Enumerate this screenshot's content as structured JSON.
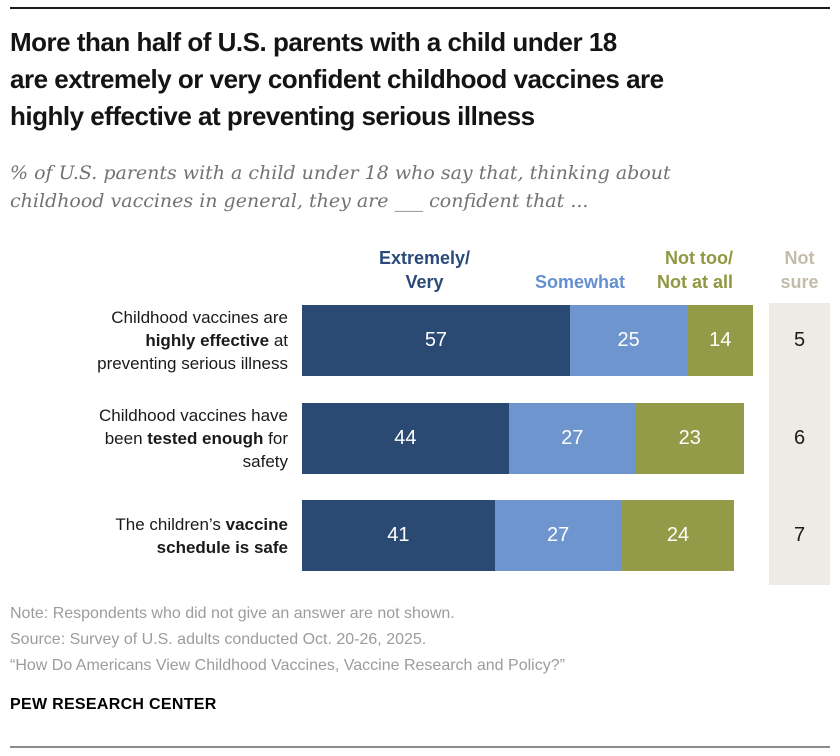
{
  "header": {
    "title_lines": [
      "More than half of U.S. parents with a child under 18",
      "are extremely or very confident childhood vaccines are",
      "highly effective at preventing serious illness"
    ],
    "subtitle_lines": [
      "% of U.S. parents with a child under 18 who say that, thinking about",
      "childhood vaccines in general, they are ___ confident that ..."
    ]
  },
  "colors": {
    "navy": "#2a4a74",
    "blue": "#6e95cd",
    "olive": "#949b48",
    "navy_text": "#2a4a78",
    "blue_text": "#6590d0",
    "olive_text": "#8f9740",
    "notsure_bg": "#edebe3",
    "notsure_text": "#c2bcaa",
    "bar_value_text": "#ffffff"
  },
  "chart_data": {
    "type": "bar",
    "variant": "horizontal-stacked",
    "unit": "%",
    "xlim": [
      0,
      100
    ],
    "legend": [
      {
        "id": "extremely_very",
        "lines": [
          "Extremely/",
          "Very"
        ]
      },
      {
        "id": "somewhat",
        "lines": [
          "Somewhat"
        ]
      },
      {
        "id": "not_too_not_at_all",
        "lines": [
          "Not too/",
          "Not at all"
        ]
      },
      {
        "id": "not_sure",
        "lines": [
          "Not",
          "sure"
        ]
      }
    ],
    "series_order": [
      "extremely_very",
      "somewhat",
      "not_too_not_at_all"
    ],
    "rows": [
      {
        "label_lines": [
          [
            {
              "text": "Childhood vaccines are",
              "bold": false
            }
          ],
          [
            {
              "text": "highly effective",
              "bold": true
            },
            {
              "text": " at",
              "bold": false
            }
          ],
          [
            {
              "text": "preventing serious illness",
              "bold": false
            }
          ]
        ],
        "values": [
          57,
          25,
          14
        ],
        "not_sure": 5
      },
      {
        "label_lines": [
          [
            {
              "text": "Childhood vaccines have",
              "bold": false
            }
          ],
          [
            {
              "text": "been ",
              "bold": false
            },
            {
              "text": "tested enough",
              "bold": true
            },
            {
              "text": " for",
              "bold": false
            }
          ],
          [
            {
              "text": "safety",
              "bold": false
            }
          ]
        ],
        "values": [
          44,
          27,
          23
        ],
        "not_sure": 6
      },
      {
        "label_lines": [
          [
            {
              "text": "The children’s ",
              "bold": false
            },
            {
              "text": "vaccine",
              "bold": true
            }
          ],
          [
            {
              "text": "schedule is safe",
              "bold": true
            }
          ]
        ],
        "values": [
          41,
          27,
          24
        ],
        "not_sure": 7
      }
    ]
  },
  "footer": {
    "note": "Note: Respondents who did not give an answer are not shown.",
    "source": "Source: Survey of U.S. adults conducted Oct. 20-26, 2025.",
    "report": "“How Do Americans View Childhood Vaccines, Vaccine Research and Policy?”",
    "brand": "PEW RESEARCH CENTER"
  }
}
